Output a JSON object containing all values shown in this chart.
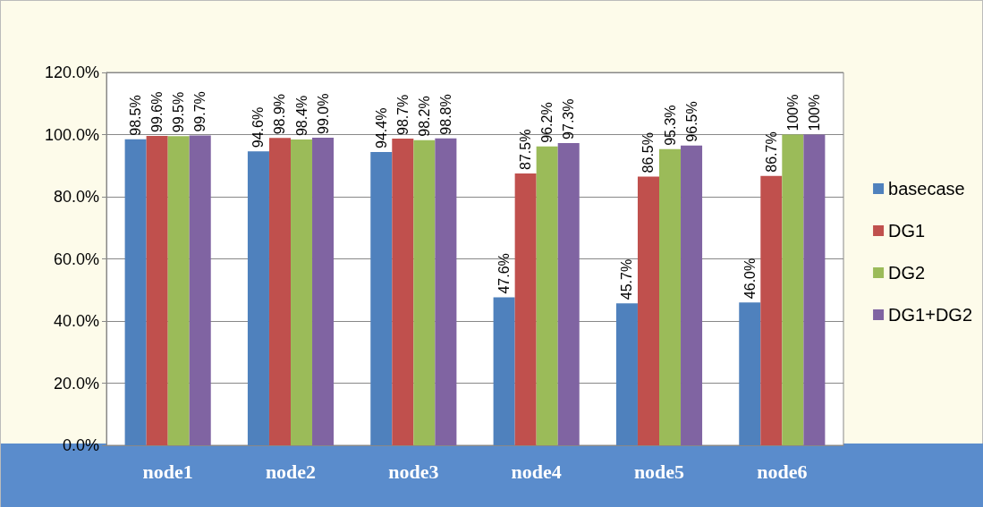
{
  "chart_data": {
    "type": "bar",
    "categories": [
      "node1",
      "node2",
      "node3",
      "node4",
      "node5",
      "node6"
    ],
    "series": [
      {
        "name": "basecase",
        "color": "#4f81bd",
        "values": [
          98.5,
          94.6,
          94.4,
          47.6,
          45.7,
          46.0
        ],
        "value_labels": [
          "98.5%",
          "94.6%",
          "94.4%",
          "47.6%",
          "45.7%",
          "46.0%"
        ]
      },
      {
        "name": "DG1",
        "color": "#c0504d",
        "values": [
          99.6,
          98.9,
          98.7,
          87.5,
          86.5,
          86.7
        ],
        "value_labels": [
          "99.6%",
          "98.9%",
          "98.7%",
          "87.5%",
          "86.5%",
          "86.7%"
        ]
      },
      {
        "name": "DG2",
        "color": "#9bbb59",
        "values": [
          99.5,
          98.4,
          98.2,
          96.2,
          95.3,
          100
        ],
        "value_labels": [
          "99.5%",
          "98.4%",
          "98.2%",
          "96.2%",
          "95.3%",
          "100%"
        ]
      },
      {
        "name": "DG1+DG2",
        "color": "#8064a2",
        "values": [
          99.7,
          99.0,
          98.8,
          97.3,
          96.5,
          100
        ],
        "value_labels": [
          "99.7%",
          "99.0%",
          "98.8%",
          "97.3%",
          "96.5%",
          "100%"
        ]
      }
    ],
    "ylim": [
      0,
      120
    ],
    "yticks": [
      {
        "value": 0,
        "label": "0.0%"
      },
      {
        "value": 20,
        "label": "20.0%"
      },
      {
        "value": 40,
        "label": "40.0%"
      },
      {
        "value": 60,
        "label": "60.0%"
      },
      {
        "value": 80,
        "label": "80.0%"
      },
      {
        "value": 100,
        "label": "100.0%"
      },
      {
        "value": 120,
        "label": "120.0%"
      }
    ],
    "grid": "y",
    "legend": "right"
  }
}
